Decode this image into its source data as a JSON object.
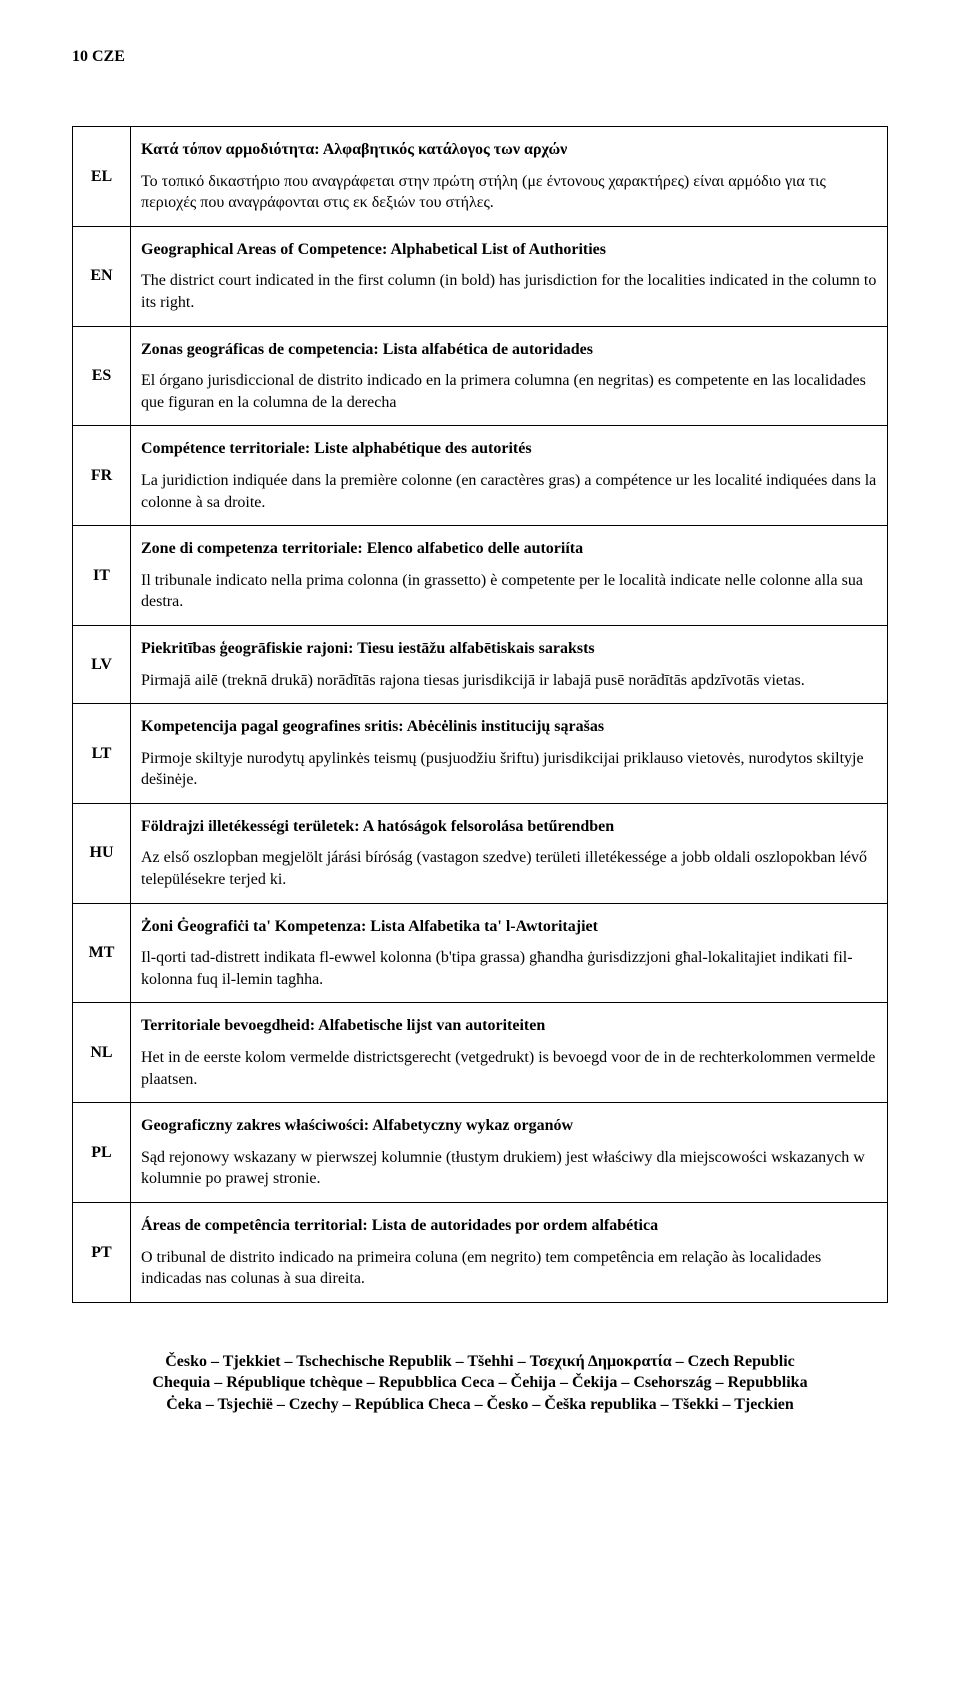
{
  "header": "10 CZE",
  "rows": [
    {
      "code": "EL",
      "title": "Κατά τόπον αρμοδιότητα: Αλφαβητικός κατάλογος των αρχών",
      "body": "Το τοπικό δικαστήριο που αναγράφεται στην πρώτη στήλη (με έντονους χαρακτήρες) είναι αρμόδιο για τις περιοχές που αναγράφονται στις εκ δεξιών του στήλες."
    },
    {
      "code": "EN",
      "title": "Geographical Areas of Competence: Alphabetical List of Authorities",
      "body": "The district court indicated in the first column (in bold) has jurisdiction for the localities indicated in the column to its right."
    },
    {
      "code": "ES",
      "title": "Zonas geográficas de competencia: Lista alfabética de autoridades",
      "body": "El órgano jurisdiccional de distrito indicado en la primera columna (en negritas) es competente en las localidades que figuran en la columna de la derecha"
    },
    {
      "code": "FR",
      "title": "Compétence territoriale: Liste alphabétique des autorités",
      "body": "La juridiction indiquée dans la première colonne (en caractères gras) a compétence ur les localité indiquées dans la colonne à sa droite."
    },
    {
      "code": "IT",
      "title": "Zone di competenza territoriale: Elenco alfabetico delle autoriíta",
      "body": "Il tribunale indicato nella prima colonna (in grassetto) è competente per le località indicate nelle colonne alla sua destra."
    },
    {
      "code": "LV",
      "title": "Piekritības ģeogrāfiskie rajoni: Tiesu iestāžu alfabētiskais saraksts",
      "body": "Pirmajā ailē (treknā drukā) norādītās rajona tiesas jurisdikcijā ir labajā pusē norādītās apdzīvotās vietas."
    },
    {
      "code": "LT",
      "title": "Kompetencija pagal geografines sritis: Abėcėlinis institucijų sąrašas",
      "body": "Pirmoje skiltyje nurodytų apylinkės teismų (pusjuodžiu šriftu) jurisdikcijai priklauso vietovės, nurodytos skiltyje dešinėje."
    },
    {
      "code": "HU",
      "title": "Földrajzi illetékességi területek: A hatóságok felsorolása betűrendben",
      "body": "Az első oszlopban megjelölt járási bíróság (vastagon szedve) területi illetékessége a jobb oldali oszlopokban lévő településekre terjed ki."
    },
    {
      "code": "MT",
      "title": "Żoni Ġeografiċi ta' Kompetenza: Lista Alfabetika ta' l-Awtoritajiet",
      "body": "Il-qorti tad-distrett indikata fl-ewwel kolonna (b'tipa grassa) għandha ġurisdizzjoni għal-lokalitajiet indikati fil-kolonna fuq il-lemin tagħha."
    },
    {
      "code": "NL",
      "title": "Territoriale bevoegdheid: Alfabetische lijst van autoriteiten",
      "body": "Het in de eerste kolom vermelde districtsgerecht (vetgedrukt) is bevoegd voor de in de rechterkolommen vermelde plaatsen."
    },
    {
      "code": "PL",
      "title": "Geograficzny zakres właściwości: Alfabetyczny wykaz organów",
      "body": "Sąd rejonowy wskazany w pierwszej kolumnie (tłustym drukiem) jest właściwy dla miejscowości wskazanych w kolumnie po prawej stronie."
    },
    {
      "code": "PT",
      "title": "Áreas de competência territorial: Lista de autoridades por ordem alfabética",
      "body": "O tribunal de distrito indicado na primeira coluna (em negrito) tem competência em relação às localidades indicadas nas colunas à sua direita."
    }
  ],
  "footer_lines": [
    "Česko – Tjekkiet – Tschechische Republik – Tšehhi – Τσεχική Δημοκρατία – Czech Republic",
    "Chequia – République tchèque – Repubblica Ceca – Čehija – Čekija – Csehország – Repubblika",
    "Ċeka – Tsjechië – Czechy – República Checa – Česko – Češka republika – Tšekki – Tjeckien"
  ]
}
